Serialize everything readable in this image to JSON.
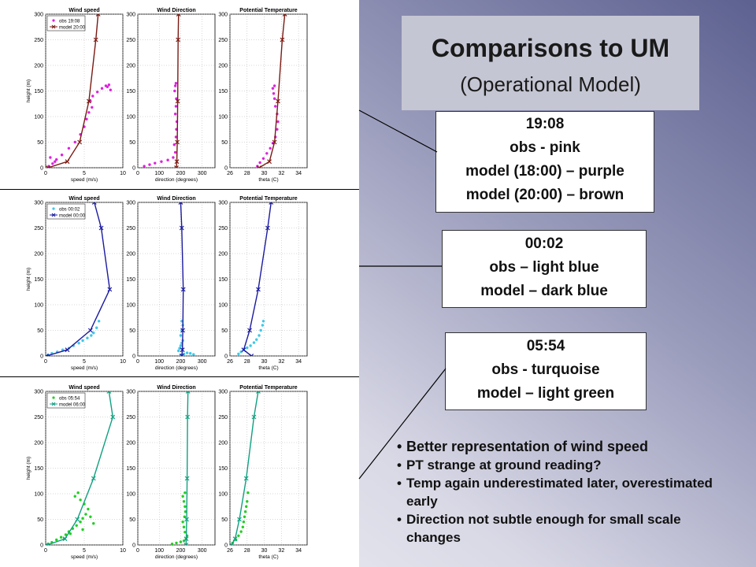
{
  "title": {
    "main": "Comparisons to UM",
    "sub": "(Operational Model)"
  },
  "info_boxes": [
    {
      "lines": [
        "19:08",
        "obs - pink",
        "model (18:00) – purple",
        "model (20:00) – brown"
      ]
    },
    {
      "lines": [
        "00:02",
        "obs – light blue",
        "model – dark blue"
      ]
    },
    {
      "lines": [
        "05:54",
        "obs - turquoise",
        "model – light green"
      ]
    }
  ],
  "bullets": [
    "Better representation of wind speed",
    "PT strange at ground reading?",
    "Temp again underestimated later, overestimated early",
    "Direction not subtle enough for small scale changes"
  ],
  "chart_data": [
    {
      "type": "scatter",
      "title": "Wind speed",
      "xlabel": "speed (m/s)",
      "ylabel": "height (m)",
      "xlim": [
        0,
        10
      ],
      "ylim": [
        0,
        300
      ],
      "xticks": [
        0,
        5,
        10
      ],
      "yticks": [
        0,
        50,
        100,
        150,
        200,
        250,
        300
      ],
      "legend": [
        "obs 19:08",
        "model 20:00"
      ],
      "series": [
        {
          "name": "obs 19:08",
          "color": "#e020e0",
          "marker": "dot",
          "x": [
            0.4,
            0.9,
            1.2,
            0.6,
            1.4,
            2.1,
            3.0,
            3.8,
            4.5,
            5.0,
            5.3,
            5.6,
            6.0,
            5.8,
            6.1,
            6.7,
            7.3,
            7.8,
            8.2,
            8.0,
            8.4
          ],
          "y": [
            3,
            8,
            12,
            20,
            16,
            25,
            38,
            50,
            65,
            80,
            95,
            108,
            118,
            130,
            140,
            148,
            155,
            160,
            162,
            158,
            152
          ]
        },
        {
          "name": "model 20:00",
          "color": "#7a1a12",
          "marker": "x",
          "x": [
            0.3,
            2.8,
            4.4,
            5.6,
            6.5,
            6.8
          ],
          "y": [
            0,
            12,
            50,
            130,
            250,
            300
          ]
        }
      ]
    },
    {
      "type": "scatter",
      "title": "Wind Direction",
      "xlabel": "direction (degrees)",
      "ylabel": "",
      "xlim": [
        0,
        360
      ],
      "ylim": [
        0,
        300
      ],
      "xticks": [
        0,
        100,
        200,
        300
      ],
      "yticks": [
        0,
        50,
        100,
        150,
        200,
        250,
        300
      ],
      "series": [
        {
          "name": "obs 19:08",
          "color": "#e020e0",
          "marker": "dot",
          "x": [
            30,
            55,
            80,
            110,
            140,
            165,
            175,
            170,
            178,
            180,
            182,
            175,
            178,
            180,
            172,
            175,
            178
          ],
          "y": [
            3,
            6,
            9,
            12,
            15,
            20,
            30,
            45,
            60,
            75,
            90,
            105,
            120,
            135,
            150,
            160,
            165
          ]
        },
        {
          "name": "model 20:00",
          "color": "#7a1a12",
          "marker": "x",
          "x": [
            180,
            182,
            184,
            186,
            188,
            190
          ],
          "y": [
            0,
            12,
            50,
            130,
            250,
            300
          ]
        }
      ]
    },
    {
      "type": "scatter",
      "title": "Potential Temperature",
      "xlabel": "theta (C)",
      "ylabel": "",
      "xlim": [
        26,
        35
      ],
      "ylim": [
        0,
        300
      ],
      "xticks": [
        26,
        28,
        30,
        32,
        34
      ],
      "yticks": [
        0,
        50,
        100,
        150,
        200,
        250,
        300
      ],
      "series": [
        {
          "name": "obs 19:08",
          "color": "#e020e0",
          "marker": "dot",
          "x": [
            29.2,
            29.5,
            29.9,
            30.3,
            30.7,
            31.0,
            31.3,
            31.5,
            31.6,
            31.5,
            31.3,
            31.2,
            31.1,
            31.0,
            31.2
          ],
          "y": [
            3,
            10,
            18,
            28,
            38,
            48,
            60,
            75,
            90,
            105,
            120,
            135,
            145,
            155,
            160
          ]
        },
        {
          "name": "model 20:00",
          "color": "#7a1a12",
          "marker": "x",
          "x": [
            29.4,
            30.6,
            31.2,
            31.6,
            32.1,
            32.4
          ],
          "y": [
            0,
            12,
            50,
            130,
            250,
            300
          ]
        }
      ]
    },
    {
      "type": "scatter",
      "title": "Wind speed",
      "xlabel": "speed (m/s)",
      "ylabel": "height (m)",
      "xlim": [
        0,
        10
      ],
      "ylim": [
        0,
        300
      ],
      "xticks": [
        0,
        5,
        10
      ],
      "yticks": [
        0,
        50,
        100,
        150,
        200,
        250,
        300
      ],
      "legend": [
        "obs 00:02",
        "model 00:00"
      ],
      "series": [
        {
          "name": "obs 00:02",
          "color": "#3cc8e8",
          "marker": "dot",
          "x": [
            0.3,
            0.8,
            1.5,
            2.2,
            3.0,
            3.6,
            4.3,
            4.8,
            5.4,
            5.9,
            6.2,
            6.6,
            6.9
          ],
          "y": [
            2,
            5,
            8,
            12,
            15,
            20,
            25,
            30,
            35,
            40,
            45,
            55,
            68
          ]
        },
        {
          "name": "model 00:00",
          "color": "#1a1aa0",
          "marker": "x",
          "x": [
            0.1,
            2.8,
            5.8,
            8.3,
            7.2,
            6.3,
            6.0
          ],
          "y": [
            0,
            12,
            50,
            130,
            250,
            300,
            320
          ]
        }
      ]
    },
    {
      "type": "scatter",
      "title": "Wind Direction",
      "xlabel": "direction (degrees)",
      "ylabel": "",
      "xlim": [
        0,
        360
      ],
      "ylim": [
        0,
        300
      ],
      "xticks": [
        0,
        100,
        200,
        300
      ],
      "yticks": [
        0,
        50,
        100,
        150,
        200,
        250,
        300
      ],
      "series": [
        {
          "name": "obs 00:02",
          "color": "#3cc8e8",
          "marker": "dot",
          "x": [
            200,
            215,
            230,
            245,
            260,
            190,
            195,
            200,
            205,
            210,
            200,
            205,
            210,
            205
          ],
          "y": [
            2,
            4,
            6,
            5,
            3,
            10,
            15,
            20,
            25,
            30,
            40,
            50,
            60,
            68
          ]
        },
        {
          "name": "model 00:00",
          "color": "#1a1aa0",
          "marker": "x",
          "x": [
            205,
            208,
            210,
            212,
            205,
            200,
            198
          ],
          "y": [
            0,
            12,
            50,
            130,
            250,
            300,
            320
          ]
        }
      ]
    },
    {
      "type": "scatter",
      "title": "Potential Temperature",
      "xlabel": "theta (C)",
      "ylabel": "",
      "xlim": [
        26,
        35
      ],
      "ylim": [
        0,
        300
      ],
      "xticks": [
        26,
        28,
        30,
        32,
        34
      ],
      "yticks": [
        0,
        50,
        100,
        150,
        200,
        250,
        300
      ],
      "series": [
        {
          "name": "obs 00:02",
          "color": "#3cc8e8",
          "marker": "dot",
          "x": [
            27.0,
            27.3,
            27.6,
            28.0,
            28.4,
            28.8,
            29.1,
            29.4,
            29.6,
            29.8,
            29.9
          ],
          "y": [
            4,
            8,
            12,
            16,
            20,
            26,
            32,
            40,
            50,
            60,
            68
          ]
        },
        {
          "name": "model 00:00",
          "color": "#1a1aa0",
          "marker": "x",
          "x": [
            28.5,
            27.6,
            28.3,
            29.3,
            30.4,
            30.8,
            31.0
          ],
          "y": [
            0,
            12,
            50,
            130,
            250,
            300,
            320
          ]
        }
      ]
    },
    {
      "type": "scatter",
      "title": "Wind speed",
      "xlabel": "speed (m/s)",
      "ylabel": "height (m)",
      "xlim": [
        0,
        10
      ],
      "ylim": [
        0,
        300
      ],
      "xticks": [
        0,
        5,
        10
      ],
      "yticks": [
        0,
        50,
        100,
        150,
        200,
        250,
        300
      ],
      "legend": [
        "obs 05:54",
        "model 06:00"
      ],
      "series": [
        {
          "name": "obs 05:54",
          "color": "#20d020",
          "marker": "dot",
          "x": [
            0.3,
            0.8,
            1.4,
            2.0,
            2.6,
            3.0,
            3.5,
            4.0,
            4.5,
            4.8,
            5.2,
            5.5,
            5.0,
            4.5,
            3.8,
            4.2,
            5.8,
            6.2,
            4.8,
            3.2,
            2.4
          ],
          "y": [
            2,
            5,
            10,
            15,
            20,
            26,
            32,
            38,
            45,
            52,
            60,
            70,
            80,
            88,
            95,
            102,
            55,
            42,
            30,
            22,
            12
          ]
        },
        {
          "name": "model 06:00",
          "color": "#10a080",
          "marker": "x",
          "x": [
            0.2,
            2.5,
            4.1,
            6.2,
            8.7,
            8.2
          ],
          "y": [
            0,
            12,
            50,
            130,
            250,
            300
          ]
        }
      ]
    },
    {
      "type": "scatter",
      "title": "Wind Direction",
      "xlabel": "direction (degrees)",
      "ylabel": "",
      "xlim": [
        0,
        360
      ],
      "ylim": [
        0,
        300
      ],
      "xticks": [
        0,
        100,
        200,
        300
      ],
      "yticks": [
        0,
        50,
        100,
        150,
        200,
        250,
        300
      ],
      "series": [
        {
          "name": "obs 05:54",
          "color": "#20d020",
          "marker": "dot",
          "x": [
            160,
            180,
            200,
            215,
            225,
            230,
            220,
            215,
            210,
            218,
            222,
            220,
            215,
            210,
            220
          ],
          "y": [
            2,
            4,
            6,
            8,
            12,
            18,
            25,
            35,
            45,
            55,
            65,
            75,
            85,
            95,
            102
          ]
        },
        {
          "name": "model 06:00",
          "color": "#10a080",
          "marker": "x",
          "x": [
            225,
            226,
            228,
            230,
            232,
            234
          ],
          "y": [
            0,
            12,
            50,
            130,
            250,
            300
          ]
        }
      ]
    },
    {
      "type": "scatter",
      "title": "Potential Temperature",
      "xlabel": "theta (C)",
      "ylabel": "",
      "xlim": [
        26,
        35
      ],
      "ylim": [
        0,
        300
      ],
      "xticks": [
        26,
        28,
        30,
        32,
        34
      ],
      "yticks": [
        0,
        50,
        100,
        150,
        200,
        250,
        300
      ],
      "series": [
        {
          "name": "obs 05:54",
          "color": "#20d020",
          "marker": "dot",
          "x": [
            26.3,
            26.7,
            27.0,
            27.3,
            27.5,
            27.6,
            27.7,
            27.8,
            27.9,
            28.0,
            28.1
          ],
          "y": [
            4,
            10,
            18,
            26,
            35,
            45,
            55,
            65,
            75,
            85,
            102
          ]
        },
        {
          "name": "model 06:00",
          "color": "#10a080",
          "marker": "x",
          "x": [
            26.2,
            26.6,
            27.1,
            27.9,
            28.8,
            29.3
          ],
          "y": [
            0,
            12,
            50,
            130,
            250,
            300
          ]
        }
      ]
    }
  ]
}
